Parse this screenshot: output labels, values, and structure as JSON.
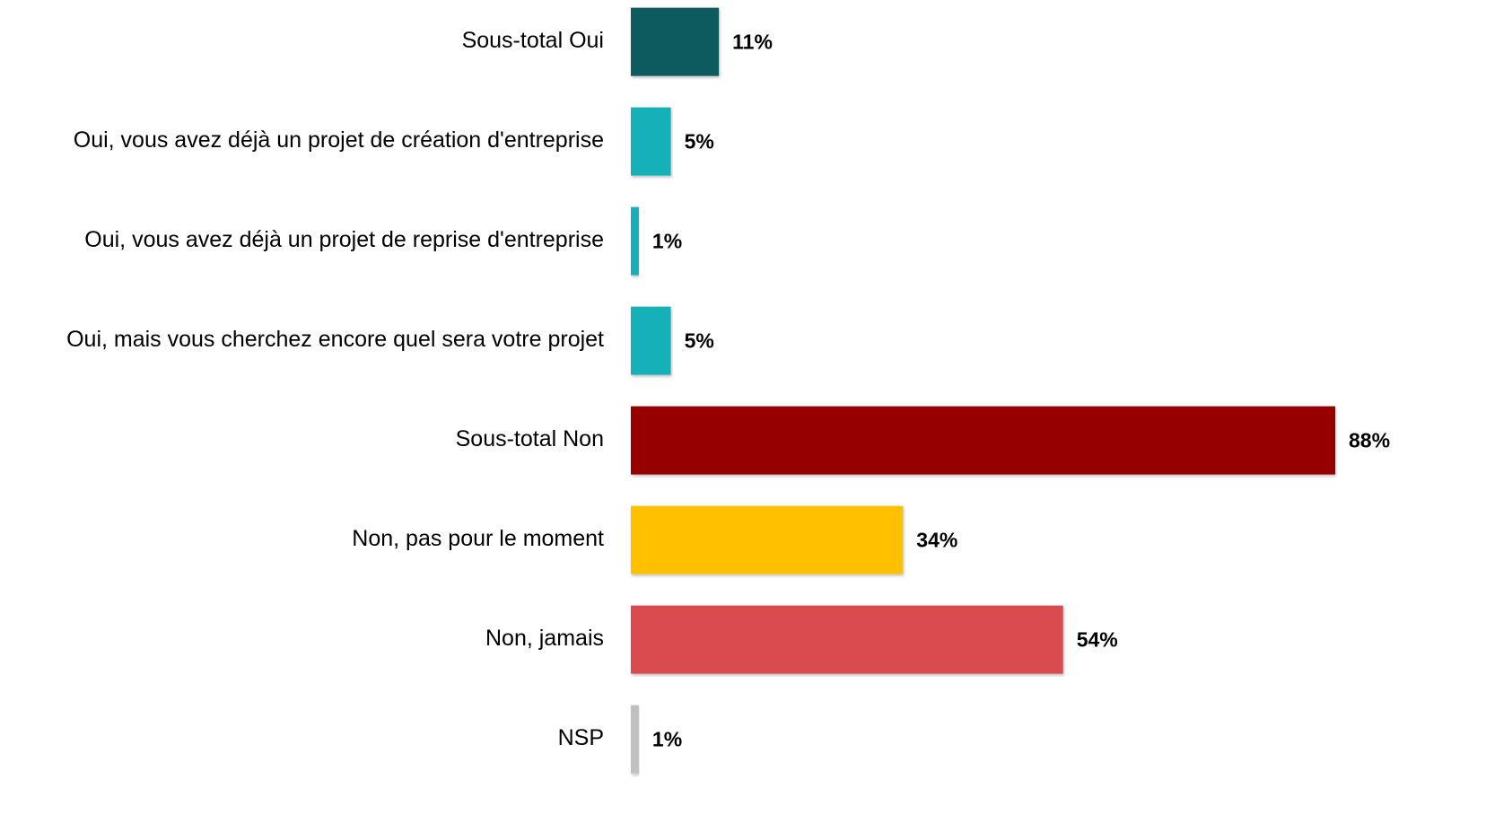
{
  "chart_data": {
    "type": "hbar",
    "categories": [
      "Sous-total Oui",
      "Oui, vous avez déjà un projet de création d'entreprise",
      "Oui, vous avez déjà un projet de reprise d'entreprise",
      "Oui, mais vous cherchez encore quel sera votre projet",
      "Sous-total Non",
      "Non, pas pour le moment",
      "Non, jamais",
      "NSP"
    ],
    "values": [
      11,
      5,
      1,
      5,
      88,
      34,
      54,
      1
    ],
    "value_labels": [
      "11%",
      "5%",
      "1%",
      "5%",
      "88%",
      "34%",
      "54%",
      "1%"
    ],
    "colors": [
      "#0e5a5e",
      "#17b0b8",
      "#17b0b8",
      "#17b0b8",
      "#960000",
      "#ffc000",
      "#d94c4f",
      "#c0c0c0"
    ]
  }
}
